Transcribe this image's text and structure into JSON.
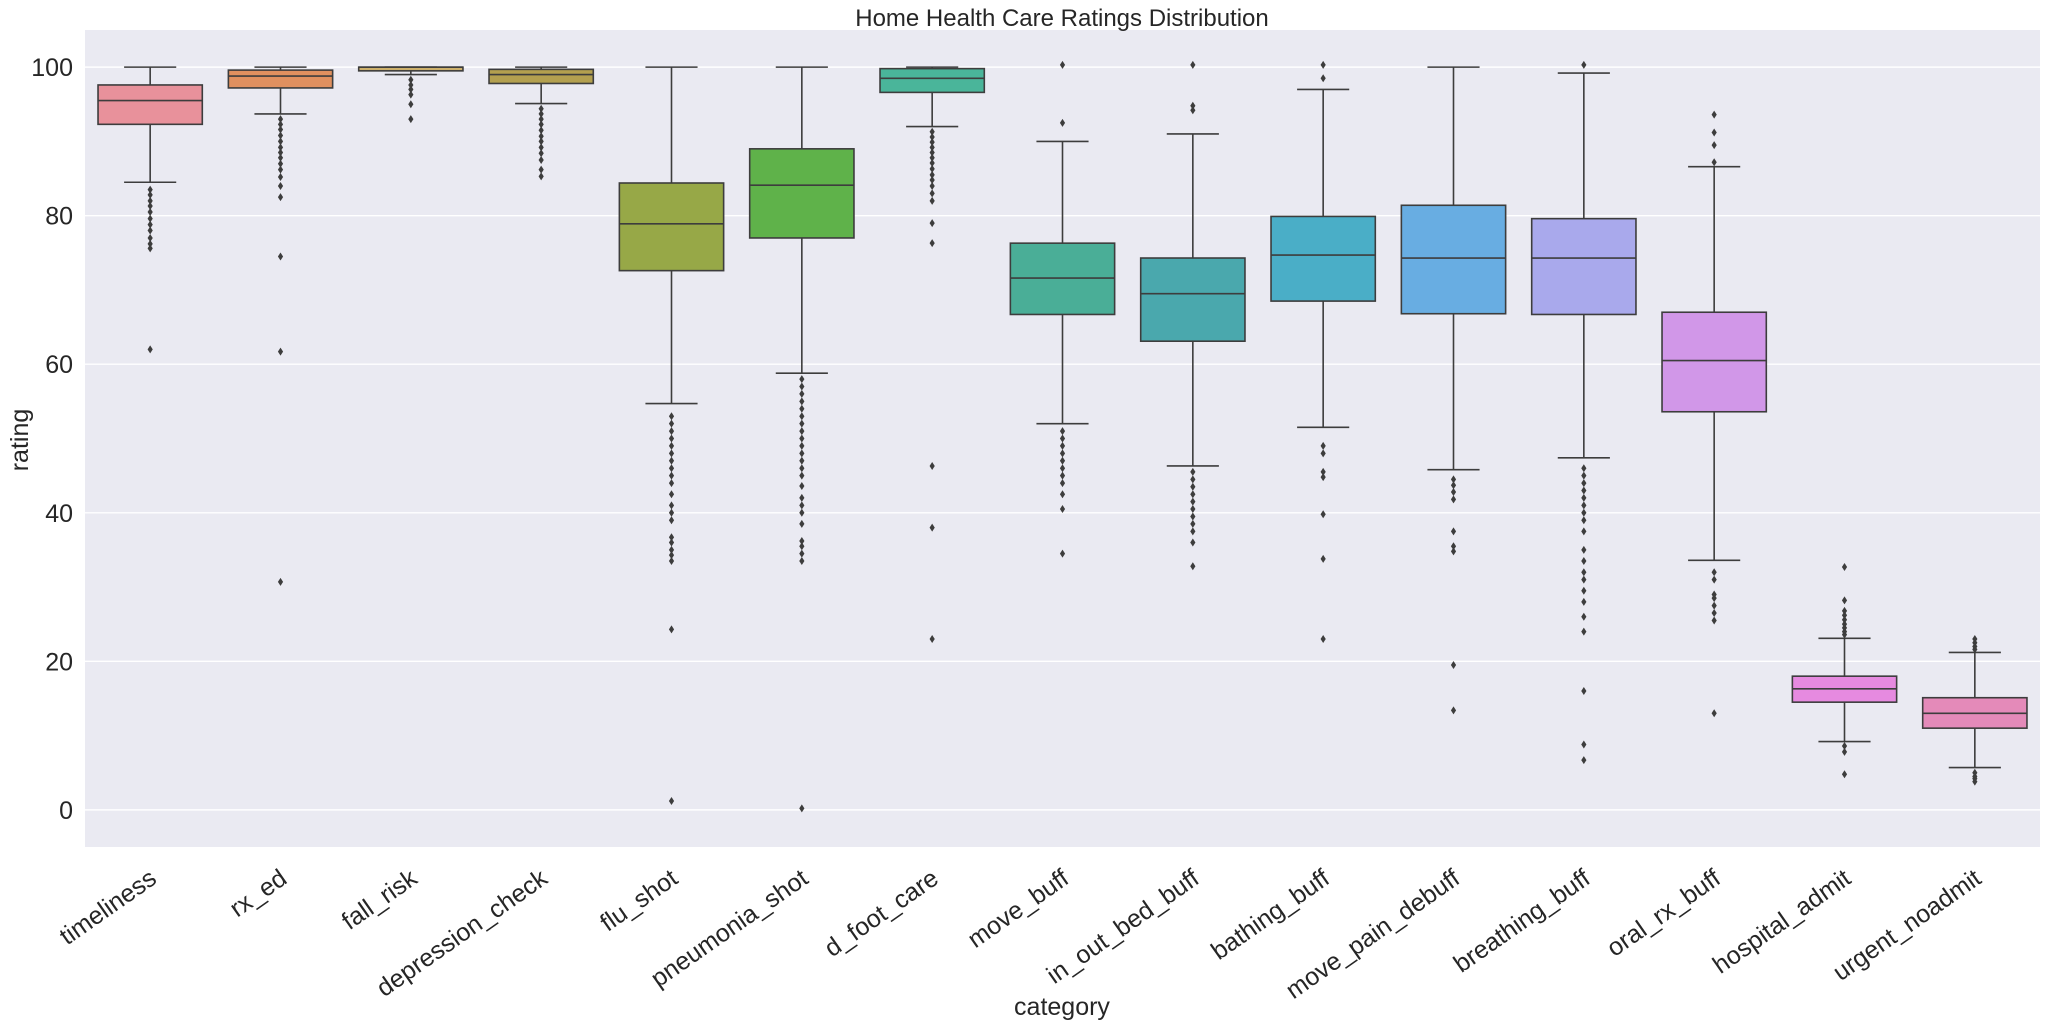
{
  "chart_data": {
    "type": "box",
    "title": "Home Health Care Ratings Distribution",
    "xlabel": "category",
    "ylabel": "rating",
    "ylim": [
      -5,
      105
    ],
    "yticks": [
      0,
      20,
      40,
      60,
      80,
      100
    ],
    "grid": true,
    "series": [
      {
        "category": "timeliness",
        "color": "#e8919b",
        "q1": 92.3,
        "median": 95.5,
        "q3": 97.6,
        "whisker_low": 84.5,
        "whisker_high": 100,
        "outliers": [
          83.5,
          82.8,
          82.0,
          81.3,
          80.5,
          79.6,
          78.8,
          78.0,
          77.0,
          76.2,
          75.6,
          62.0
        ]
      },
      {
        "category": "rx_ed",
        "color": "#e0905f",
        "q1": 97.2,
        "median": 98.8,
        "q3": 99.6,
        "whisker_low": 93.7,
        "whisker_high": 100,
        "outliers": [
          93.0,
          92.3,
          91.6,
          90.8,
          90.0,
          89.2,
          88.5,
          87.8,
          87.0,
          86.2,
          85.2,
          84.0,
          82.5,
          74.5,
          61.7,
          30.7
        ]
      },
      {
        "category": "fall_risk",
        "color": "#cdb06b",
        "q1": 99.5,
        "median": 100,
        "q3": 100,
        "whisker_low": 99.0,
        "whisker_high": 100,
        "outliers": [
          98.3,
          97.6,
          97.0,
          96.3,
          95.0,
          93.0
        ]
      },
      {
        "category": "depression_check",
        "color": "#b3a04f",
        "q1": 97.8,
        "median": 99.0,
        "q3": 99.7,
        "whisker_low": 95.1,
        "whisker_high": 100,
        "outliers": [
          94.4,
          93.7,
          93.0,
          92.3,
          91.5,
          90.7,
          90.0,
          89.2,
          88.4,
          87.5,
          86.2,
          85.3
        ]
      },
      {
        "category": "flu_shot",
        "color": "#97a847",
        "q1": 72.6,
        "median": 78.9,
        "q3": 84.4,
        "whisker_low": 54.7,
        "whisker_high": 100,
        "outliers": [
          53.0,
          52.0,
          51.0,
          50.0,
          49.0,
          48.0,
          47.0,
          46.0,
          45.0,
          44.0,
          42.5,
          41.0,
          40.0,
          39.0,
          36.7,
          36.0,
          35.0,
          34.3,
          33.5,
          24.3,
          1.2
        ]
      },
      {
        "category": "pneumonia_shot",
        "color": "#5fb24a",
        "q1": 77.0,
        "median": 84.1,
        "q3": 89.0,
        "whisker_low": 58.8,
        "whisker_high": 100,
        "outliers": [
          58.0,
          57.0,
          56.0,
          55.0,
          54.0,
          53.0,
          52.0,
          51.0,
          50.0,
          49.0,
          48.0,
          47.0,
          46.0,
          45.0,
          43.6,
          42.0,
          41.0,
          40.0,
          38.5,
          36.2,
          35.5,
          34.5,
          33.5,
          0.2
        ]
      },
      {
        "category": "d_foot_care",
        "color": "#4ab59a",
        "q1": 96.6,
        "median": 98.5,
        "q3": 99.8,
        "whisker_low": 92.0,
        "whisker_high": 100,
        "outliers": [
          91.3,
          90.6,
          89.9,
          89.2,
          88.5,
          87.8,
          87.1,
          86.3,
          85.5,
          84.8,
          84.0,
          83.0,
          82.0,
          79.0,
          76.3,
          46.3,
          38.0,
          23.0
        ]
      },
      {
        "category": "move_buff",
        "color": "#4aae97",
        "q1": 66.7,
        "median": 71.6,
        "q3": 76.3,
        "whisker_low": 52.0,
        "whisker_high": 90.0,
        "outliers": [
          100.3,
          92.5,
          51.0,
          50.0,
          49.0,
          48.0,
          47.0,
          46.0,
          45.0,
          44.0,
          42.5,
          40.5,
          34.5
        ]
      },
      {
        "category": "in_out_bed_buff",
        "color": "#4aa8ad",
        "q1": 63.1,
        "median": 69.5,
        "q3": 74.3,
        "whisker_low": 46.3,
        "whisker_high": 91.0,
        "outliers": [
          100.3,
          94.8,
          94.2,
          45.5,
          44.5,
          43.5,
          42.5,
          41.5,
          40.5,
          39.5,
          38.5,
          37.5,
          36.0,
          32.8
        ]
      },
      {
        "category": "bathing_buff",
        "color": "#4aaec7",
        "q1": 68.5,
        "median": 74.7,
        "q3": 79.9,
        "whisker_low": 51.5,
        "whisker_high": 97.0,
        "outliers": [
          100.3,
          98.5,
          49.0,
          48.0,
          45.5,
          44.8,
          39.8,
          33.8,
          23.0
        ]
      },
      {
        "category": "move_pain_debuff",
        "color": "#68ade2",
        "q1": 66.8,
        "median": 74.3,
        "q3": 81.4,
        "whisker_low": 45.8,
        "whisker_high": 100,
        "outliers": [
          44.5,
          43.7,
          42.8,
          41.8,
          37.5,
          35.5,
          34.8,
          19.5,
          13.4
        ]
      },
      {
        "category": "breathing_buff",
        "color": "#a9a9ec",
        "q1": 66.7,
        "median": 74.3,
        "q3": 79.6,
        "whisker_low": 47.4,
        "whisker_high": 99.2,
        "outliers": [
          100.3,
          46.0,
          45.0,
          44.0,
          43.0,
          42.0,
          41.0,
          40.0,
          39.0,
          37.5,
          35.0,
          33.5,
          32.0,
          31.0,
          29.5,
          28.0,
          26.0,
          24.0,
          16.0,
          8.8,
          6.7
        ]
      },
      {
        "category": "oral_rx_buff",
        "color": "#d197e8",
        "q1": 53.6,
        "median": 60.5,
        "q3": 67.0,
        "whisker_low": 33.6,
        "whisker_high": 86.6,
        "outliers": [
          93.6,
          91.2,
          89.5,
          87.2,
          32.0,
          31.0,
          29.0,
          28.5,
          27.5,
          26.5,
          25.5,
          13.0
        ]
      },
      {
        "category": "hospital_admit",
        "color": "#e68ae0",
        "q1": 14.5,
        "median": 16.3,
        "q3": 18.0,
        "whisker_low": 9.2,
        "whisker_high": 23.1,
        "outliers": [
          32.7,
          28.2,
          26.8,
          26.2,
          25.6,
          25.0,
          24.5,
          24.0,
          23.6,
          8.6,
          7.8,
          4.8
        ]
      },
      {
        "category": "urgent_noadmit",
        "color": "#e48ab9",
        "q1": 11.0,
        "median": 13.0,
        "q3": 15.1,
        "whisker_low": 5.7,
        "whisker_high": 21.2,
        "outliers": [
          23.0,
          22.5,
          22.0,
          21.6,
          5.0,
          4.5,
          4.2,
          3.8
        ]
      }
    ]
  }
}
